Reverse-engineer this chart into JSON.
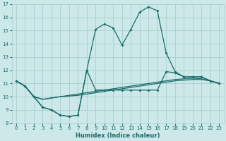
{
  "xlabel": "Humidex (Indice chaleur)",
  "background_color": "#cce8e8",
  "grid_color": "#aacece",
  "line_color": "#1a6b6b",
  "xlim": [
    -0.5,
    23.5
  ],
  "ylim": [
    8,
    17
  ],
  "xticks": [
    0,
    1,
    2,
    3,
    4,
    5,
    6,
    7,
    8,
    9,
    10,
    11,
    12,
    13,
    14,
    15,
    16,
    17,
    18,
    19,
    20,
    21,
    22,
    23
  ],
  "yticks": [
    8,
    9,
    10,
    11,
    12,
    13,
    14,
    15,
    16,
    17
  ],
  "line_main": [
    11.2,
    10.8,
    10.0,
    9.2,
    9.0,
    8.6,
    8.5,
    8.6,
    12.0,
    15.1,
    15.5,
    15.2,
    13.9,
    15.1,
    16.4,
    16.8,
    16.5,
    13.3,
    11.9,
    11.5,
    11.5,
    11.5,
    11.2,
    11.0
  ],
  "line_low": [
    11.2,
    10.8,
    10.0,
    9.2,
    9.0,
    8.6,
    8.5,
    8.6,
    12.0,
    10.5,
    10.5,
    10.5,
    10.5,
    10.5,
    10.5,
    10.5,
    10.5,
    11.9,
    11.8,
    11.5,
    11.5,
    11.5,
    11.2,
    11.0
  ],
  "line_flat1": [
    11.2,
    10.8,
    10.0,
    9.8,
    9.9,
    10.0,
    10.05,
    10.1,
    10.2,
    10.3,
    10.4,
    10.5,
    10.6,
    10.7,
    10.8,
    10.9,
    11.0,
    11.1,
    11.2,
    11.25,
    11.3,
    11.3,
    11.2,
    11.0
  ],
  "line_flat2": [
    11.2,
    10.8,
    10.0,
    9.8,
    9.9,
    10.0,
    10.1,
    10.2,
    10.3,
    10.4,
    10.5,
    10.6,
    10.7,
    10.8,
    10.9,
    11.0,
    11.1,
    11.2,
    11.3,
    11.35,
    11.4,
    11.35,
    11.2,
    11.0
  ]
}
